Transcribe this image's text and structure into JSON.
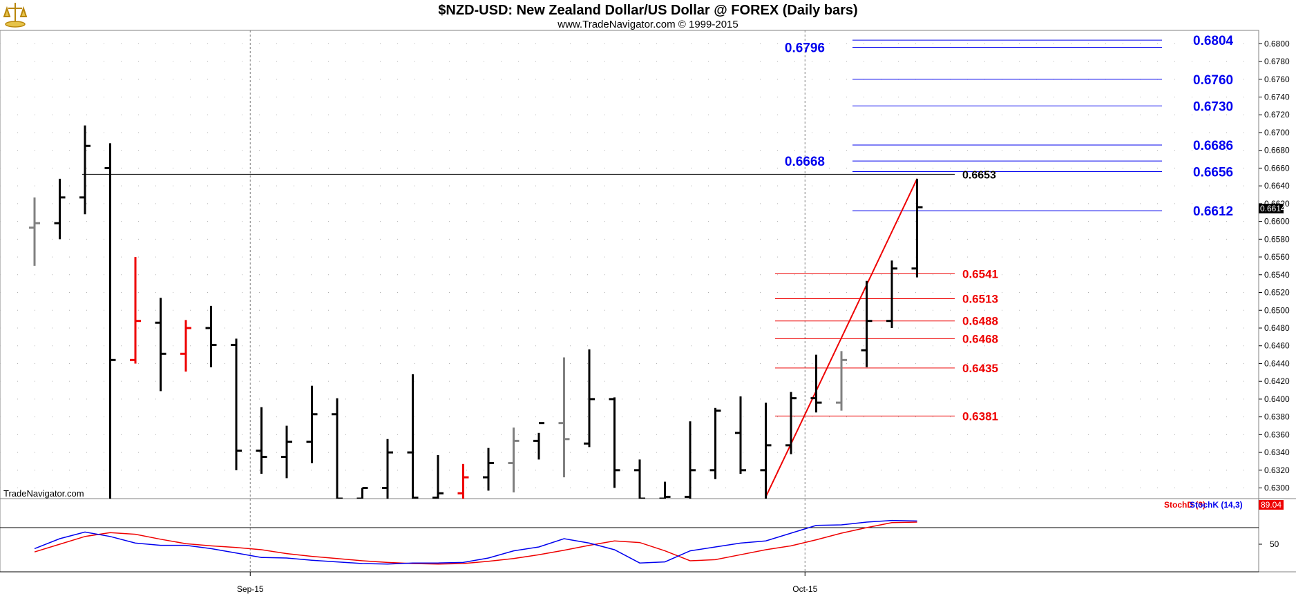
{
  "header": {
    "title": "$NZD-USD:  New Zealand Dollar/US Dollar @ FOREX  (Daily bars)",
    "subtitle": "www.TradeNavigator.com © 1999-2015"
  },
  "watermark": "TradeNavigator.com",
  "colors": {
    "up_bar": "#000000",
    "down_bar": "#ee0000",
    "neutral_bar": "#808080",
    "blue_level": "#0000ee",
    "red_level": "#ee0000",
    "stochd": "#ee0000",
    "stochk": "#0000ee"
  },
  "chart_data": {
    "type": "ohlc",
    "price_axis": {
      "ylim": [
        0.6288,
        0.6815
      ],
      "ticks": [
        "0.6800",
        "0.6780",
        "0.6760",
        "0.6740",
        "0.6720",
        "0.6700",
        "0.6680",
        "0.6660",
        "0.6640",
        "0.6620",
        "0.6600",
        "0.6580",
        "0.6560",
        "0.6540",
        "0.6520",
        "0.6500",
        "0.6480",
        "0.6460",
        "0.6440",
        "0.6420",
        "0.6400",
        "0.6380",
        "0.6360",
        "0.6340",
        "0.6320",
        "0.6300"
      ],
      "last_price": "0.6614"
    },
    "x_labels": [
      {
        "label": "Sep-15",
        "bar_index": 9
      },
      {
        "label": "Oct-15",
        "bar_index": 31
      }
    ],
    "bars": [
      {
        "o": 0.6593,
        "h": 0.6627,
        "l": 0.655,
        "c": 0.6598,
        "color": "neutral"
      },
      {
        "o": 0.6598,
        "h": 0.6648,
        "l": 0.658,
        "c": 0.6627,
        "color": "up"
      },
      {
        "o": 0.6627,
        "h": 0.6708,
        "l": 0.6608,
        "c": 0.6685,
        "color": "up"
      },
      {
        "o": 0.666,
        "h": 0.6688,
        "l": 0.627,
        "c": 0.6444,
        "color": "up"
      },
      {
        "o": 0.6444,
        "h": 0.656,
        "l": 0.644,
        "c": 0.6488,
        "color": "down"
      },
      {
        "o": 0.6486,
        "h": 0.6514,
        "l": 0.6409,
        "c": 0.6451,
        "color": "up"
      },
      {
        "o": 0.6451,
        "h": 0.6489,
        "l": 0.6431,
        "c": 0.648,
        "color": "down"
      },
      {
        "o": 0.648,
        "h": 0.6505,
        "l": 0.6436,
        "c": 0.6461,
        "color": "up"
      },
      {
        "o": 0.6461,
        "h": 0.6468,
        "l": 0.632,
        "c": 0.6342,
        "color": "up"
      },
      {
        "o": 0.6342,
        "h": 0.6391,
        "l": 0.6316,
        "c": 0.6335,
        "color": "up"
      },
      {
        "o": 0.6335,
        "h": 0.637,
        "l": 0.6311,
        "c": 0.6352,
        "color": "up"
      },
      {
        "o": 0.6352,
        "h": 0.6415,
        "l": 0.6328,
        "c": 0.6383,
        "color": "up"
      },
      {
        "o": 0.6383,
        "h": 0.6401,
        "l": 0.627,
        "c": 0.6288,
        "color": "up"
      },
      {
        "o": 0.6288,
        "h": 0.63,
        "l": 0.627,
        "c": 0.63,
        "color": "up"
      },
      {
        "o": 0.63,
        "h": 0.6355,
        "l": 0.627,
        "c": 0.634,
        "color": "up"
      },
      {
        "o": 0.634,
        "h": 0.6428,
        "l": 0.627,
        "c": 0.6289,
        "color": "up"
      },
      {
        "o": 0.6289,
        "h": 0.6337,
        "l": 0.627,
        "c": 0.6294,
        "color": "up"
      },
      {
        "o": 0.6294,
        "h": 0.6327,
        "l": 0.628,
        "c": 0.6312,
        "color": "down"
      },
      {
        "o": 0.6312,
        "h": 0.6345,
        "l": 0.6297,
        "c": 0.6328,
        "color": "up"
      },
      {
        "o": 0.6328,
        "h": 0.6368,
        "l": 0.6295,
        "c": 0.6353,
        "color": "neutral"
      },
      {
        "o": 0.6353,
        "h": 0.6362,
        "l": 0.6332,
        "c": 0.6373,
        "color": "up"
      },
      {
        "o": 0.6373,
        "h": 0.6447,
        "l": 0.6312,
        "c": 0.6355,
        "color": "neutral"
      },
      {
        "o": 0.635,
        "h": 0.6456,
        "l": 0.6346,
        "c": 0.64,
        "color": "up"
      },
      {
        "o": 0.64,
        "h": 0.6402,
        "l": 0.63,
        "c": 0.632,
        "color": "up"
      },
      {
        "o": 0.632,
        "h": 0.6332,
        "l": 0.627,
        "c": 0.6288,
        "color": "up"
      },
      {
        "o": 0.6288,
        "h": 0.6307,
        "l": 0.627,
        "c": 0.629,
        "color": "up"
      },
      {
        "o": 0.629,
        "h": 0.6375,
        "l": 0.627,
        "c": 0.632,
        "color": "up"
      },
      {
        "o": 0.632,
        "h": 0.639,
        "l": 0.631,
        "c": 0.6387,
        "color": "up"
      },
      {
        "o": 0.6362,
        "h": 0.6403,
        "l": 0.6316,
        "c": 0.632,
        "color": "up"
      },
      {
        "o": 0.632,
        "h": 0.6396,
        "l": 0.627,
        "c": 0.6348,
        "color": "up"
      },
      {
        "o": 0.6348,
        "h": 0.6408,
        "l": 0.6338,
        "c": 0.6401,
        "color": "up"
      },
      {
        "o": 0.6401,
        "h": 0.645,
        "l": 0.6385,
        "c": 0.6396,
        "color": "up"
      },
      {
        "o": 0.6396,
        "h": 0.6454,
        "l": 0.6387,
        "c": 0.6444,
        "color": "neutral"
      },
      {
        "o": 0.6455,
        "h": 0.6533,
        "l": 0.6436,
        "c": 0.6488,
        "color": "up"
      },
      {
        "o": 0.6488,
        "h": 0.6556,
        "l": 0.648,
        "c": 0.6547,
        "color": "up"
      },
      {
        "o": 0.6547,
        "h": 0.6648,
        "l": 0.6537,
        "c": 0.6616,
        "color": "up"
      }
    ],
    "trend_lines": [
      {
        "from_bar": 29,
        "from_price": 0.629,
        "to_bar": 35,
        "to_price": 0.6648,
        "color": "red"
      }
    ],
    "horizontal_levels": [
      {
        "price": 0.6804,
        "label": "0.6804",
        "color": "blue",
        "label_side": "right"
      },
      {
        "price": 0.6796,
        "label": "0.6796",
        "color": "blue",
        "label_side": "left"
      },
      {
        "price": 0.676,
        "label": "0.6760",
        "color": "blue",
        "label_side": "right"
      },
      {
        "price": 0.673,
        "label": "0.6730",
        "color": "blue",
        "label_side": "right"
      },
      {
        "price": 0.6686,
        "label": "0.6686",
        "color": "blue",
        "label_side": "right"
      },
      {
        "price": 0.6668,
        "label": "0.6668",
        "color": "blue",
        "label_side": "left"
      },
      {
        "price": 0.6656,
        "label": "0.6656",
        "color": "blue",
        "label_side": "right"
      },
      {
        "price": 0.6612,
        "label": "0.6612",
        "color": "blue",
        "label_side": "right"
      },
      {
        "price": 0.6541,
        "label": "0.6541",
        "color": "red",
        "label_side": "right"
      },
      {
        "price": 0.6513,
        "label": "0.6513",
        "color": "red",
        "label_side": "right"
      },
      {
        "price": 0.6488,
        "label": "0.6488",
        "color": "red",
        "label_side": "right"
      },
      {
        "price": 0.6468,
        "label": "0.6468",
        "color": "red",
        "label_side": "right"
      },
      {
        "price": 0.6435,
        "label": "0.6435",
        "color": "red",
        "label_side": "right"
      },
      {
        "price": 0.6381,
        "label": "0.6381",
        "color": "red",
        "label_side": "right"
      }
    ],
    "black_level": {
      "price": 0.6653,
      "label": "0.6653",
      "from_bar": 2
    },
    "stochastic": {
      "ylim": [
        0,
        100
      ],
      "tick_label": "50",
      "tick_value": 50,
      "current_value": "89.04",
      "series": [
        {
          "name": "StochD (3)",
          "color": "red",
          "values": [
            36,
            50,
            64,
            71,
            68,
            59,
            51,
            47,
            44,
            40,
            33,
            28,
            24,
            20,
            17,
            15,
            14,
            15,
            19,
            24,
            31,
            39,
            48,
            56,
            53,
            38,
            20,
            22,
            31,
            40,
            47,
            58,
            70,
            80,
            89,
            90
          ]
        },
        {
          "name": "StochK (14,3)",
          "color": "blue",
          "values": [
            42,
            60,
            72,
            64,
            52,
            48,
            48,
            42,
            34,
            26,
            25,
            21,
            18,
            15,
            14,
            16,
            16,
            17,
            25,
            38,
            45,
            60,
            52,
            40,
            16,
            18,
            38,
            45,
            52,
            56,
            70,
            84,
            85,
            90,
            93,
            92
          ]
        }
      ]
    }
  }
}
